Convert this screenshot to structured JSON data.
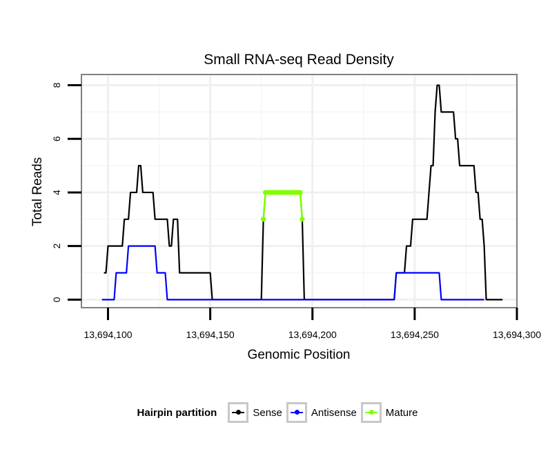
{
  "chart_data": {
    "type": "line",
    "title": "Small RNA-seq Read Density",
    "xlabel": "Genomic Position",
    "ylabel": "Total Reads",
    "xlim": [
      13694087,
      13694300
    ],
    "ylim": [
      -0.3,
      8.4
    ],
    "x_ticks": [
      13694100,
      13694150,
      13694200,
      13694250,
      13694300
    ],
    "x_tick_labels": [
      "13,694,100",
      "13,694,150",
      "13,694,200",
      "13,694,250",
      "13,694,300"
    ],
    "y_ticks": [
      0,
      2,
      4,
      6,
      8
    ],
    "y_tick_labels": [
      "0",
      "2",
      "4",
      "6",
      "8"
    ],
    "grid": true,
    "legend_position": "bottom",
    "series": [
      {
        "name": "Sense",
        "color": "#000000",
        "points": [
          [
            13694098,
            1
          ],
          [
            13694099,
            1
          ],
          [
            13694100,
            2
          ],
          [
            13694107,
            2
          ],
          [
            13694108,
            3
          ],
          [
            13694110,
            3
          ],
          [
            13694111,
            4
          ],
          [
            13694114,
            4
          ],
          [
            13694115,
            5
          ],
          [
            13694116,
            5
          ],
          [
            13694117,
            4
          ],
          [
            13694122,
            4
          ],
          [
            13694123,
            3
          ],
          [
            13694129,
            3
          ],
          [
            13694130,
            2
          ],
          [
            13694131,
            2
          ],
          [
            13694132,
            3
          ],
          [
            13694134,
            3
          ],
          [
            13694135,
            1
          ],
          [
            13694150,
            1
          ],
          [
            13694151,
            0
          ],
          [
            13694175,
            0
          ],
          [
            13694176,
            3
          ],
          [
            13694177,
            4
          ],
          [
            13694194,
            4
          ],
          [
            13694195,
            3
          ],
          [
            13694196,
            0
          ],
          [
            13694240,
            0
          ],
          [
            13694241,
            1
          ],
          [
            13694245,
            1
          ],
          [
            13694246,
            2
          ],
          [
            13694248,
            2
          ],
          [
            13694249,
            3
          ],
          [
            13694256,
            3
          ],
          [
            13694257,
            4
          ],
          [
            13694258,
            5
          ],
          [
            13694259,
            5
          ],
          [
            13694260,
            7
          ],
          [
            13694261,
            8
          ],
          [
            13694262,
            8
          ],
          [
            13694263,
            7
          ],
          [
            13694269,
            7
          ],
          [
            13694270,
            6
          ],
          [
            13694271,
            6
          ],
          [
            13694272,
            5
          ],
          [
            13694279,
            5
          ],
          [
            13694280,
            4
          ],
          [
            13694281,
            4
          ],
          [
            13694282,
            3
          ],
          [
            13694283,
            3
          ],
          [
            13694284,
            2
          ],
          [
            13694285,
            0
          ],
          [
            13694293,
            0
          ]
        ]
      },
      {
        "name": "Antisense",
        "color": "#0000ff",
        "points": [
          [
            13694097,
            0
          ],
          [
            13694103,
            0
          ],
          [
            13694104,
            1
          ],
          [
            13694109,
            1
          ],
          [
            13694110,
            2
          ],
          [
            13694123,
            2
          ],
          [
            13694124,
            1
          ],
          [
            13694128,
            1
          ],
          [
            13694129,
            0
          ],
          [
            13694240,
            0
          ],
          [
            13694241,
            1
          ],
          [
            13694262,
            1
          ],
          [
            13694263,
            0
          ],
          [
            13694284,
            0
          ]
        ]
      },
      {
        "name": "Mature",
        "color": "#80ff00",
        "points": [
          [
            13694176,
            3
          ],
          [
            13694177,
            4
          ],
          [
            13694178,
            4
          ],
          [
            13694179,
            4
          ],
          [
            13694180,
            4
          ],
          [
            13694181,
            4
          ],
          [
            13694182,
            4
          ],
          [
            13694183,
            4
          ],
          [
            13694184,
            4
          ],
          [
            13694185,
            4
          ],
          [
            13694186,
            4
          ],
          [
            13694187,
            4
          ],
          [
            13694188,
            4
          ],
          [
            13694189,
            4
          ],
          [
            13694190,
            4
          ],
          [
            13694191,
            4
          ],
          [
            13694192,
            4
          ],
          [
            13694193,
            4
          ],
          [
            13694194,
            4
          ],
          [
            13694195,
            3
          ]
        ]
      }
    ]
  },
  "legend": {
    "title": "Hairpin partition",
    "items": [
      {
        "label": "Sense",
        "color": "#000000"
      },
      {
        "label": "Antisense",
        "color": "#0000ff"
      },
      {
        "label": "Mature",
        "color": "#80ff00"
      }
    ]
  }
}
